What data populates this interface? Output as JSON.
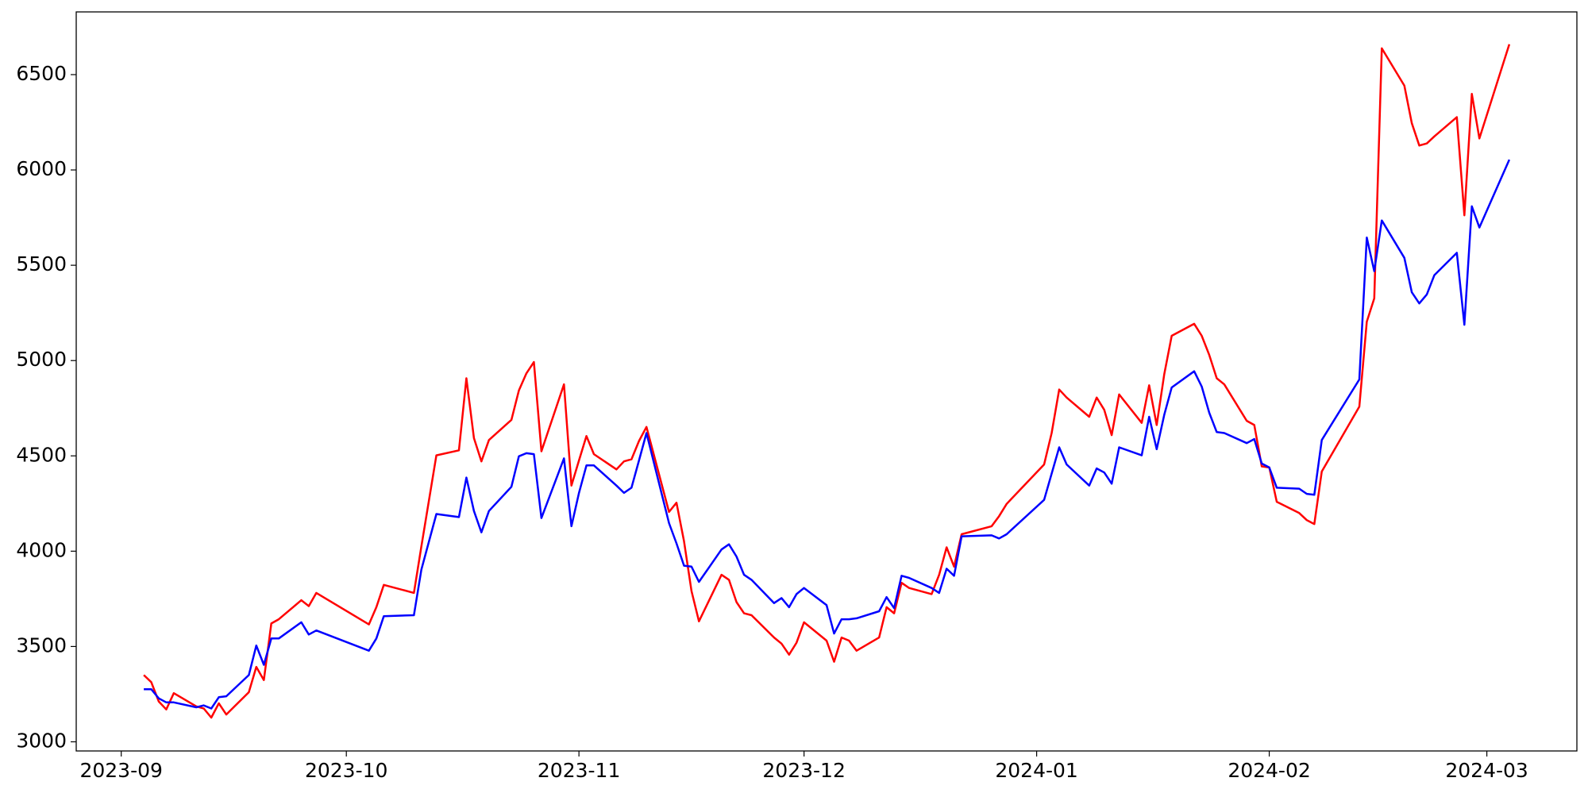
{
  "chart_data": {
    "type": "line",
    "x": [
      "2023-09-04",
      "2023-09-05",
      "2023-09-06",
      "2023-09-07",
      "2023-09-08",
      "2023-09-11",
      "2023-09-12",
      "2023-09-13",
      "2023-09-14",
      "2023-09-15",
      "2023-09-18",
      "2023-09-19",
      "2023-09-20",
      "2023-09-21",
      "2023-09-22",
      "2023-09-25",
      "2023-09-26",
      "2023-09-27",
      "2023-10-04",
      "2023-10-05",
      "2023-10-06",
      "2023-10-10",
      "2023-10-11",
      "2023-10-13",
      "2023-10-16",
      "2023-10-17",
      "2023-10-18",
      "2023-10-19",
      "2023-10-20",
      "2023-10-23",
      "2023-10-24",
      "2023-10-25",
      "2023-10-26",
      "2023-10-27",
      "2023-10-30",
      "2023-10-31",
      "2023-11-01",
      "2023-11-02",
      "2023-11-03",
      "2023-11-06",
      "2023-11-07",
      "2023-11-08",
      "2023-11-09",
      "2023-11-10",
      "2023-11-13",
      "2023-11-14",
      "2023-11-15",
      "2023-11-16",
      "2023-11-17",
      "2023-11-20",
      "2023-11-21",
      "2023-11-22",
      "2023-11-23",
      "2023-11-24",
      "2023-11-27",
      "2023-11-28",
      "2023-11-29",
      "2023-11-30",
      "2023-12-01",
      "2023-12-04",
      "2023-12-05",
      "2023-12-06",
      "2023-12-07",
      "2023-12-08",
      "2023-12-11",
      "2023-12-12",
      "2023-12-13",
      "2023-12-14",
      "2023-12-15",
      "2023-12-18",
      "2023-12-19",
      "2023-12-20",
      "2023-12-21",
      "2023-12-22",
      "2023-12-26",
      "2023-12-27",
      "2023-12-28",
      "2024-01-02",
      "2024-01-03",
      "2024-01-04",
      "2024-01-05",
      "2024-01-08",
      "2024-01-09",
      "2024-01-10",
      "2024-01-11",
      "2024-01-12",
      "2024-01-15",
      "2024-01-16",
      "2024-01-17",
      "2024-01-18",
      "2024-01-19",
      "2024-01-22",
      "2024-01-23",
      "2024-01-24",
      "2024-01-25",
      "2024-01-26",
      "2024-01-29",
      "2024-01-30",
      "2024-01-31",
      "2024-02-01",
      "2024-02-02",
      "2024-02-05",
      "2024-02-06",
      "2024-02-07",
      "2024-02-08",
      "2024-02-13",
      "2024-02-14",
      "2024-02-15",
      "2024-02-16",
      "2024-02-19",
      "2024-02-20",
      "2024-02-21",
      "2024-02-22",
      "2024-02-23",
      "2024-02-26",
      "2024-02-27",
      "2024-02-28",
      "2024-02-29",
      "2024-03-04"
    ],
    "series": [
      {
        "name": "red",
        "color": "#ff0000",
        "values": [
          3350,
          3313,
          3212,
          3170,
          3255,
          3186,
          3175,
          3127,
          3202,
          3143,
          3260,
          3393,
          3324,
          3621,
          3643,
          3743,
          3712,
          3781,
          3616,
          3706,
          3823,
          3781,
          4025,
          4503,
          4529,
          4907,
          4593,
          4471,
          4583,
          4689,
          4843,
          4933,
          4992,
          4524,
          4875,
          4344,
          4476,
          4604,
          4509,
          4429,
          4471,
          4482,
          4578,
          4652,
          4206,
          4254,
          4052,
          3791,
          3632,
          3876,
          3850,
          3733,
          3674,
          3664,
          3547,
          3515,
          3457,
          3520,
          3627,
          3531,
          3420,
          3547,
          3531,
          3478,
          3547,
          3706,
          3674,
          3834,
          3807,
          3775,
          3876,
          4020,
          3919,
          4089,
          4131,
          4184,
          4248,
          4455,
          4620,
          4848,
          4806,
          4705,
          4806,
          4742,
          4609,
          4822,
          4673,
          4870,
          4662,
          4928,
          5130,
          5193,
          5130,
          5029,
          4907,
          4875,
          4684,
          4662,
          4445,
          4439,
          4259,
          4200,
          4163,
          4142,
          4418,
          4758,
          5204,
          5326,
          6638,
          6442,
          6245,
          6128,
          6139,
          6176,
          6277,
          5762,
          6399,
          6165,
          6659
        ]
      },
      {
        "name": "blue",
        "color": "#0000ff",
        "values": [
          3276,
          3276,
          3228,
          3207,
          3207,
          3181,
          3191,
          3175,
          3234,
          3239,
          3350,
          3505,
          3404,
          3542,
          3542,
          3627,
          3563,
          3584,
          3478,
          3542,
          3659,
          3664,
          3903,
          4195,
          4179,
          4386,
          4211,
          4099,
          4211,
          4338,
          4498,
          4514,
          4509,
          4174,
          4487,
          4131,
          4306,
          4450,
          4450,
          4344,
          4306,
          4333,
          4476,
          4620,
          4147,
          4041,
          3924,
          3919,
          3839,
          4009,
          4036,
          3972,
          3876,
          3850,
          3728,
          3754,
          3706,
          3775,
          3807,
          3717,
          3568,
          3643,
          3643,
          3648,
          3685,
          3759,
          3701,
          3871,
          3860,
          3807,
          3781,
          3908,
          3871,
          4078,
          4083,
          4067,
          4089,
          4269,
          4407,
          4545,
          4455,
          4344,
          4434,
          4413,
          4354,
          4545,
          4503,
          4705,
          4535,
          4715,
          4859,
          4944,
          4864,
          4726,
          4625,
          4620,
          4567,
          4588,
          4460,
          4439,
          4333,
          4328,
          4301,
          4296,
          4583,
          4901,
          5645,
          5469,
          5735,
          5539,
          5358,
          5300,
          5347,
          5448,
          5565,
          5188,
          5809,
          5698,
          6054
        ]
      }
    ],
    "xlim": [
      "2023-08-26",
      "2024-03-13"
    ],
    "xticks": [
      "2023-09",
      "2023-10",
      "2023-11",
      "2023-12",
      "2024-01",
      "2024-02",
      "2024-03"
    ],
    "ylim": [
      2952,
      6829
    ],
    "yticks": [
      3000,
      3500,
      4000,
      4500,
      5000,
      5500,
      6000,
      6500
    ],
    "grid": false
  }
}
